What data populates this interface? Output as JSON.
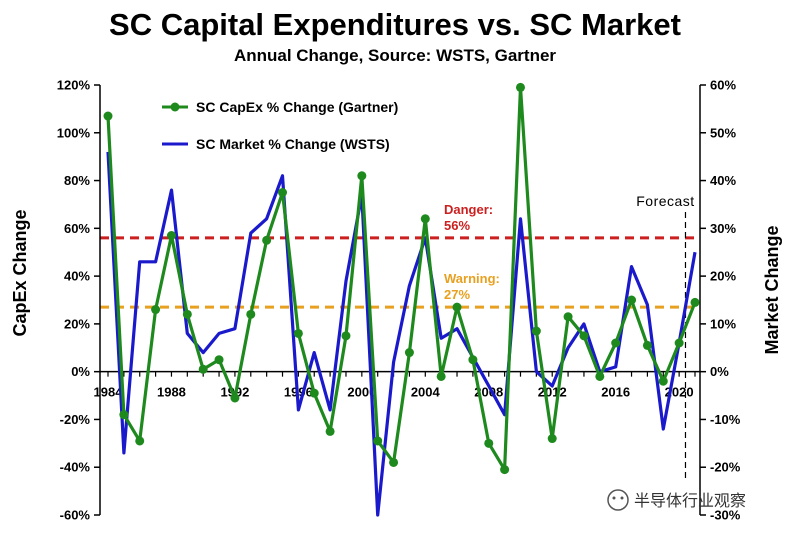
{
  "chart_data": {
    "type": "line",
    "title": "SC Capital Expenditures vs. SC Market",
    "subtitle": "Annual Change, Source: WSTS, Gartner",
    "ylabel_left": "CapEx Change",
    "ylabel_right": "Market Change",
    "ylim_left": [
      -60,
      120
    ],
    "ylim_right": [
      -30,
      60
    ],
    "yticks_left": [
      "-60%",
      "-40%",
      "-20%",
      "0%",
      "20%",
      "40%",
      "60%",
      "80%",
      "100%",
      "120%"
    ],
    "yticks_right": [
      "-30%",
      "-20%",
      "-10%",
      "0%",
      "10%",
      "20%",
      "30%",
      "40%",
      "50%",
      "60%"
    ],
    "xlim": [
      1984,
      2021
    ],
    "xticks": [
      "1984",
      "1988",
      "1992",
      "1996",
      "2000",
      "2004",
      "2008",
      "2012",
      "2016",
      "2020"
    ],
    "x": [
      1984,
      1985,
      1986,
      1987,
      1988,
      1989,
      1990,
      1991,
      1992,
      1993,
      1994,
      1995,
      1996,
      1997,
      1998,
      1999,
      2000,
      2001,
      2002,
      2003,
      2004,
      2005,
      2006,
      2007,
      2008,
      2009,
      2010,
      2011,
      2012,
      2013,
      2014,
      2015,
      2016,
      2017,
      2018,
      2019,
      2020,
      2021
    ],
    "series": [
      {
        "name": "SC CapEx % Change (Gartner)",
        "axis": "left",
        "color": "#1e8a1e",
        "marker": "circle",
        "values": [
          107,
          -18,
          -29,
          26,
          57,
          24,
          1,
          5,
          -11,
          24,
          55,
          75,
          16,
          -9,
          -25,
          15,
          82,
          -29,
          -38,
          8,
          64,
          -2,
          27,
          5,
          -30,
          -41,
          119,
          17,
          -28,
          23,
          15,
          -2,
          12,
          30,
          11,
          -4,
          12,
          29
        ]
      },
      {
        "name": "SC Market % Change (WSTS)",
        "axis": "right",
        "color": "#1a1acc",
        "marker": "none",
        "values": [
          46,
          -17,
          23,
          23,
          38,
          8,
          4,
          8,
          9,
          29,
          32,
          41,
          -8,
          4,
          -8,
          19,
          37,
          -30,
          2,
          18,
          28,
          7,
          9,
          3,
          -3,
          -9,
          32,
          0,
          -3,
          5,
          10,
          0,
          1,
          22,
          14,
          -12,
          6,
          25
        ]
      }
    ],
    "reference_lines": [
      {
        "label": "Danger:",
        "value_label": "56%",
        "value": 56,
        "axis": "left",
        "color": "#cc1f1f",
        "style": "dashed"
      },
      {
        "label": "Warning:",
        "value_label": "27%",
        "value": 27,
        "axis": "left",
        "color": "#e8a020",
        "style": "dashed"
      }
    ],
    "forecast": {
      "label": "Forecast",
      "x": 2020.4
    },
    "legend_position": "top-left",
    "grid": false
  },
  "watermark": "半导体行业观察"
}
